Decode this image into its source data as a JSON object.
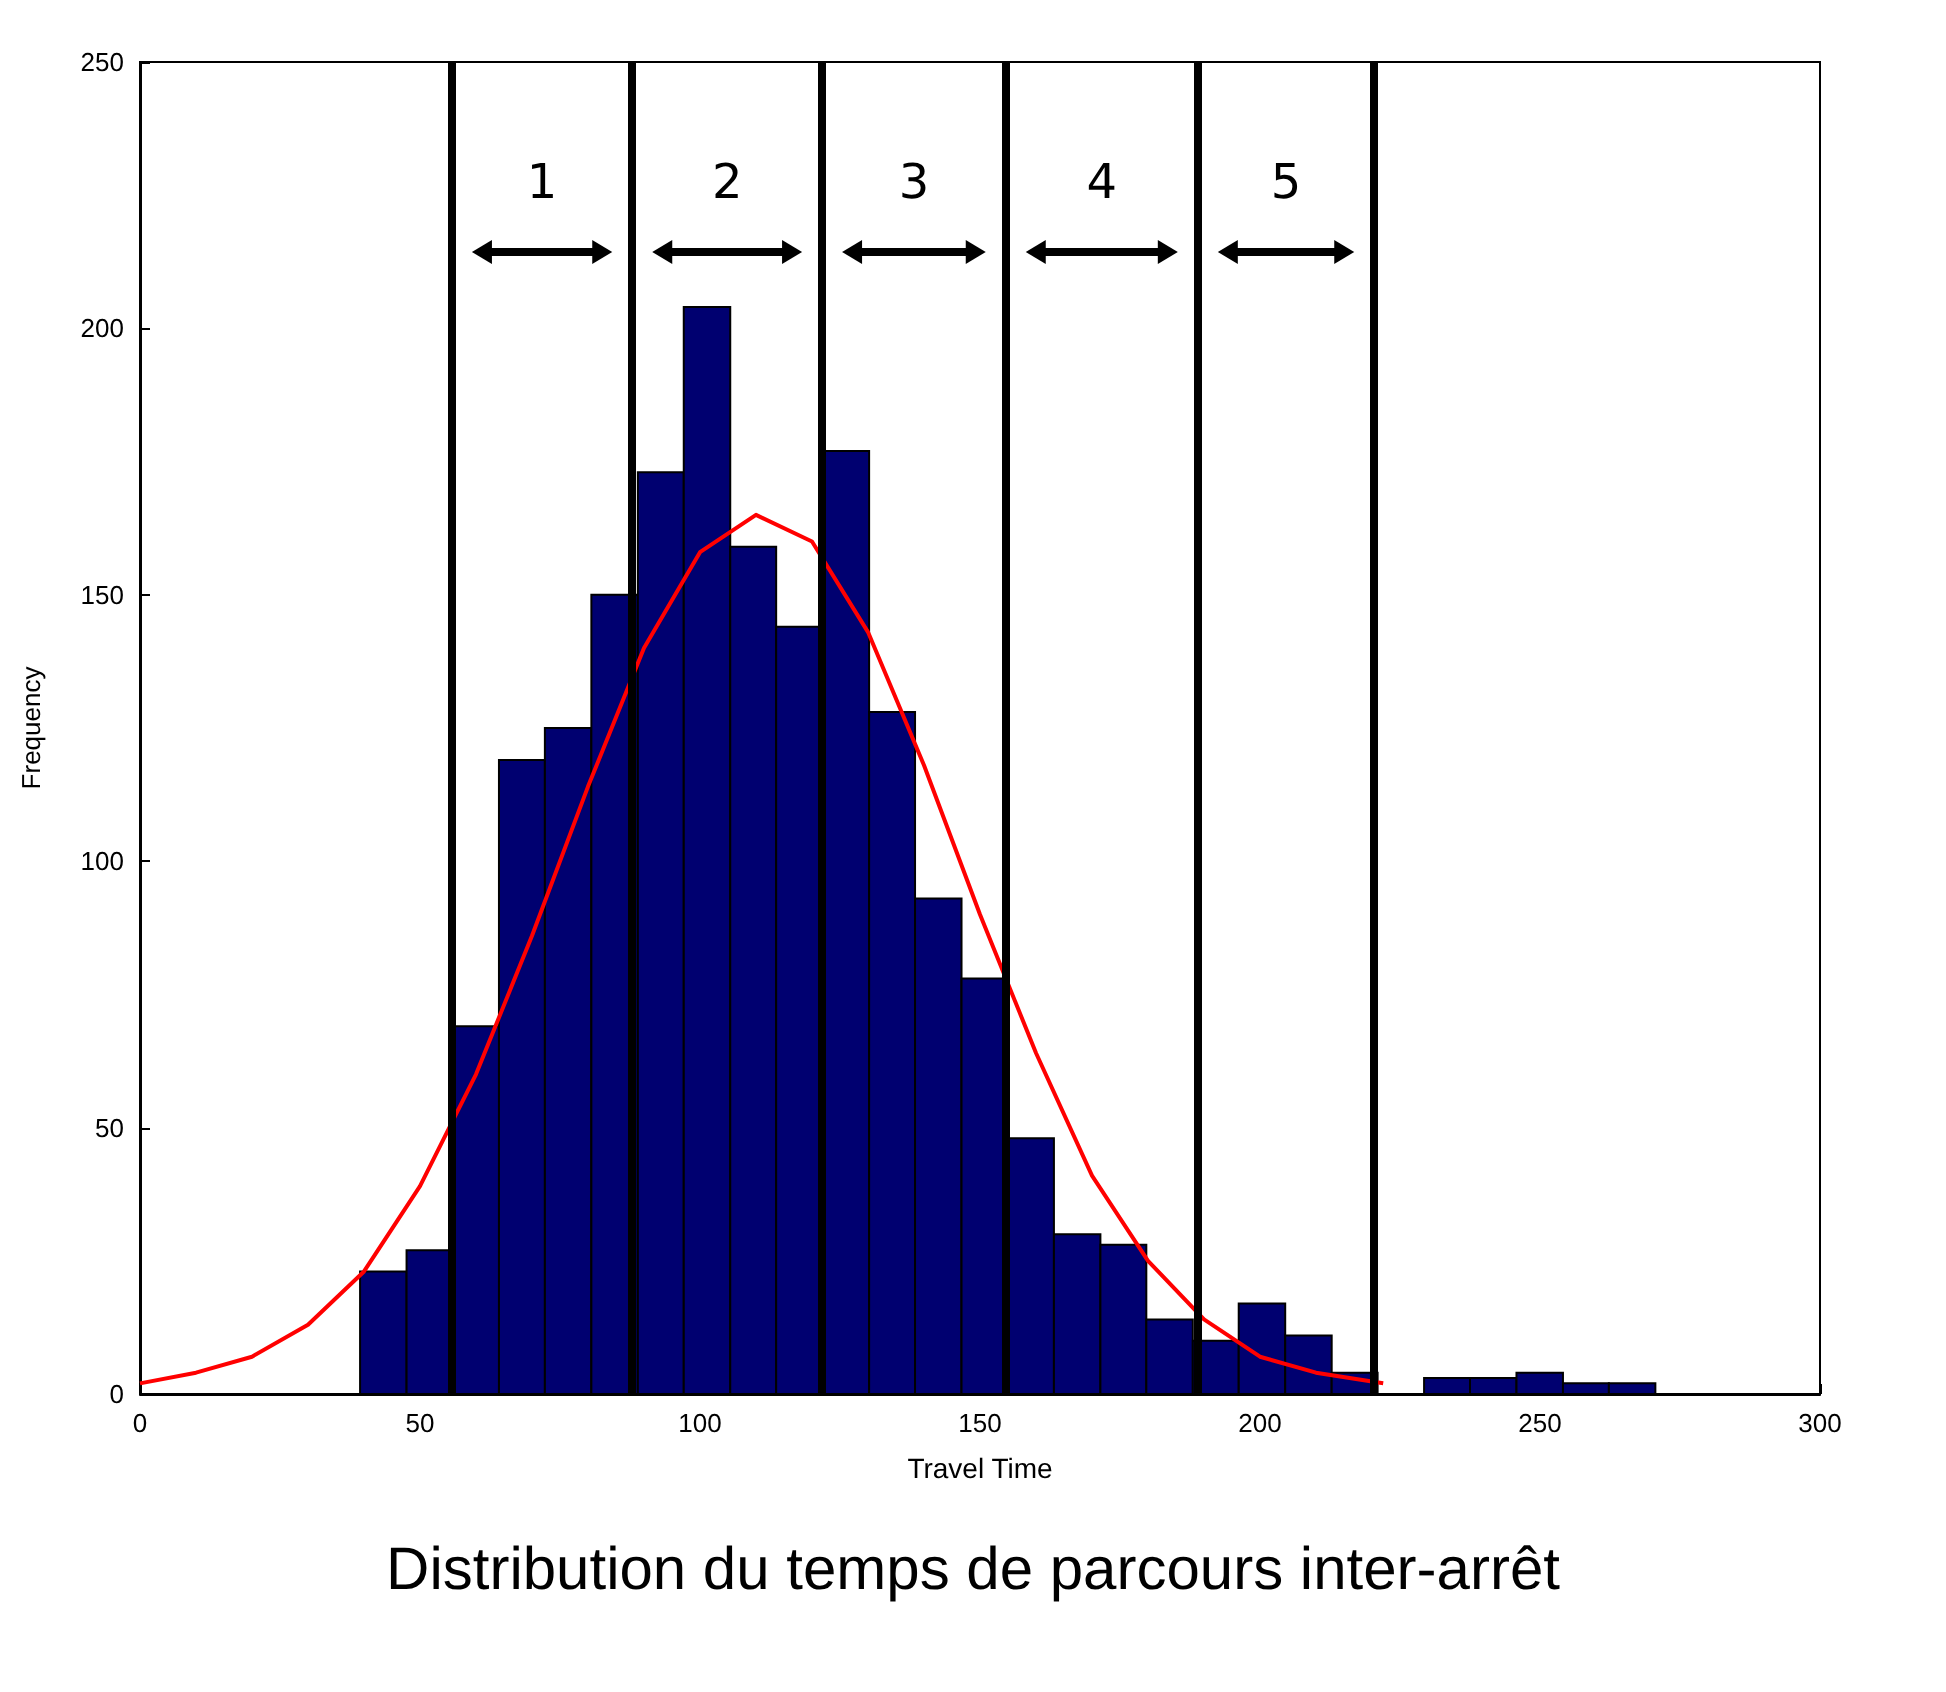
{
  "chart_data": {
    "type": "histogram",
    "title": "Distribution du temps de parcours inter-arrêt",
    "xlabel": "Travel Time",
    "ylabel": "Frequency",
    "xlim": [
      0,
      300
    ],
    "xticks": [
      0,
      50,
      100,
      150,
      200,
      250,
      300
    ],
    "ylim": [
      0,
      250
    ],
    "yticks": [
      0,
      50,
      100,
      150,
      200,
      250
    ],
    "grid": false,
    "series": [
      {
        "color": "#000070",
        "bins": [
          39.3,
          47.6,
          55.8,
          64.1,
          72.3,
          80.6,
          88.9,
          97.1,
          105.4,
          113.6,
          121.9,
          130.2,
          138.4,
          146.7,
          154.9,
          163.2,
          171.5,
          179.7,
          188.0,
          196.2,
          204.5,
          212.8,
          221.0,
          229.3,
          237.5,
          245.8,
          254.1,
          262.3,
          270.6
        ],
        "values": [
          23,
          27,
          69,
          119,
          125,
          150,
          173,
          204,
          159,
          144,
          177,
          128,
          93,
          78,
          48,
          30,
          28,
          14,
          10,
          17,
          11,
          4,
          0,
          3,
          3,
          4,
          2,
          2
        ]
      },
      {
        "type": "line",
        "color": "#ff0000",
        "marker": "none",
        "x": [
          0,
          10,
          20,
          30,
          40,
          50,
          60,
          70,
          80,
          90,
          100,
          110,
          120,
          130,
          140,
          150,
          160,
          170,
          180,
          190,
          200,
          210,
          222
        ],
        "values": [
          2,
          4,
          7,
          13,
          23,
          39,
          60,
          86,
          114,
          140,
          158,
          165,
          160,
          143,
          118,
          90,
          64,
          41,
          25,
          14,
          7,
          4,
          2
        ]
      }
    ],
    "ref_lines": [
      {
        "axis": "x",
        "value": 55.7,
        "color": "#000000"
      },
      {
        "axis": "x",
        "value": 87.9,
        "color": "#000000"
      },
      {
        "axis": "x",
        "value": 121.8,
        "color": "#000000"
      },
      {
        "axis": "x",
        "value": 154.6,
        "color": "#000000"
      },
      {
        "axis": "x",
        "value": 188.9,
        "color": "#000000"
      },
      {
        "axis": "x",
        "value": 220.4,
        "color": "#000000"
      }
    ],
    "annotations": [
      "1",
      "2",
      "3",
      "4",
      "5"
    ]
  }
}
